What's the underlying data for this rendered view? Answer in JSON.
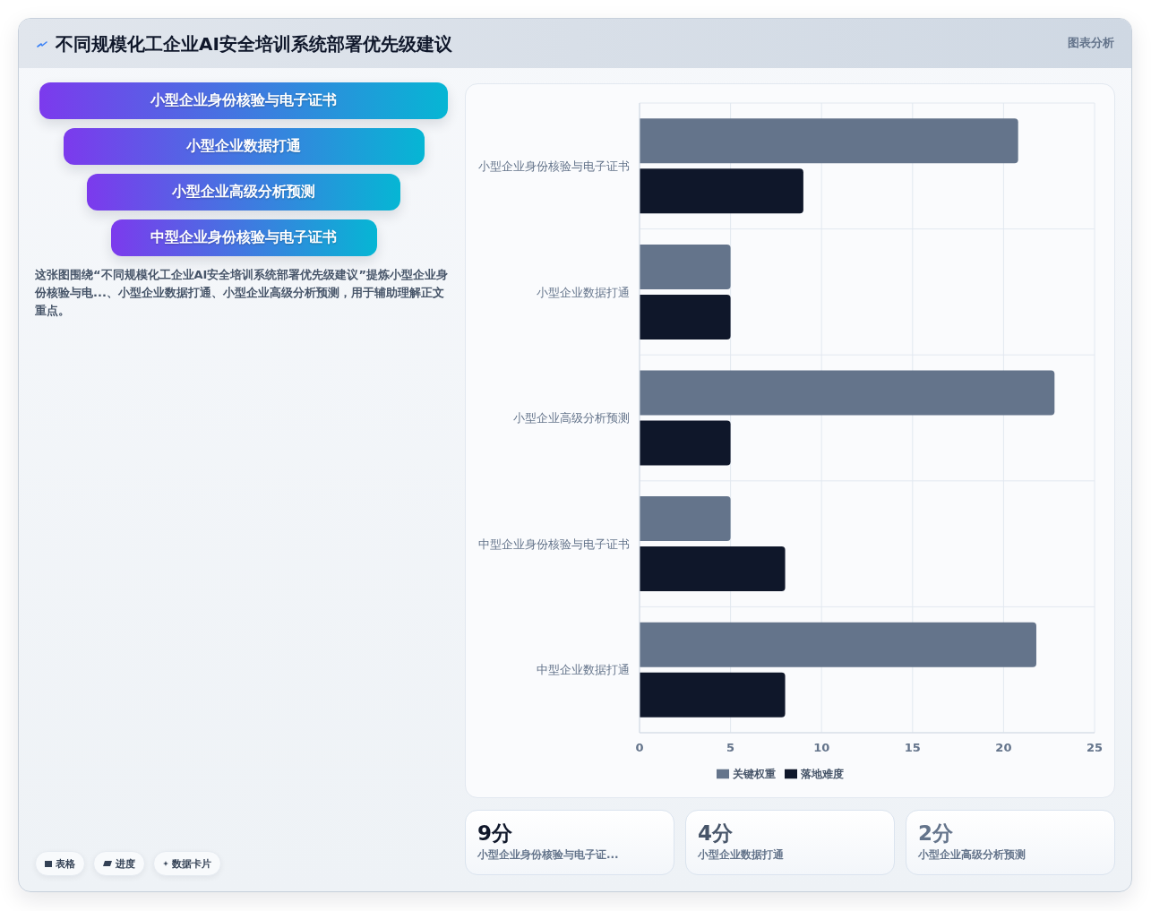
{
  "chart_data": {
    "type": "bar",
    "orientation": "horizontal",
    "title": "不同规模化工企业AI安全培训系统部署优先级建议",
    "categories": [
      "小型企业身份核验与电子证书",
      "小型企业数据打通",
      "小型企业高级分析预测",
      "中型企业身份核验与电子证书",
      "中型企业数据打通"
    ],
    "series": [
      {
        "name": "关键权重",
        "color": "#64748b",
        "values": [
          20.8,
          5,
          22.8,
          5,
          21.8
        ]
      },
      {
        "name": "落地难度",
        "color": "#0f172a",
        "values": [
          9,
          5,
          5,
          8,
          8
        ]
      }
    ],
    "xlim": [
      0,
      25
    ],
    "xticks": [
      0,
      5,
      10,
      15,
      20,
      25
    ],
    "grid": true,
    "legend": "bottom",
    "annotations": [
      "图表分析",
      "小型企业身份核验与电子证书",
      "小型企业数据打通",
      "小型企业高级分析预测",
      "中型企业身份核验与电子证书",
      "这张图围绕“不同规模化工企业AI安全培训系统部署优先级建议”提炼小型企业身份核验与电...、小型企业数据打通、小型企业高级分析预测，用于辅助理解正文重点。",
      "9分",
      "小型企业身份核验与电子证...",
      "4分",
      "小型企业数据打通",
      "2分",
      "小型企业高级分析预测",
      "表格",
      "进度",
      "数据卡片"
    ]
  }
}
